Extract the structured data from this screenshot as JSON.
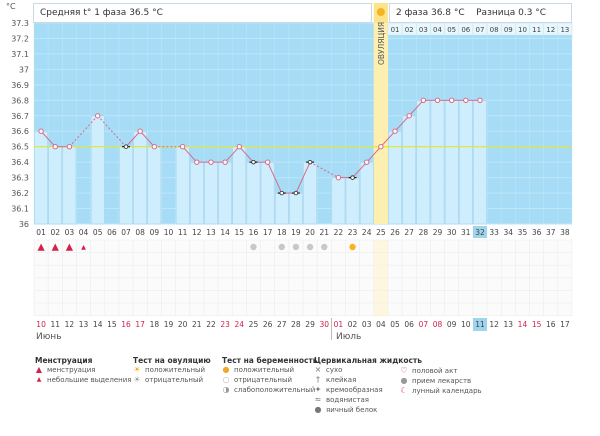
{
  "header": {
    "phase1_label": "Средняя t° 1 фаза",
    "phase1_value": "36.5 °C",
    "phase2_label": "2 фаза",
    "phase2_value": "36.8 °C",
    "diff_label": "Разница",
    "diff_value": "0.3 °C",
    "ovulation_label": "ОВУЛЯЦИЯ"
  },
  "chart_data": {
    "type": "line",
    "ylabel": "°C",
    "yticks": [
      "37.3",
      "37.2",
      "37.1",
      "37",
      "36.9",
      "36.8",
      "36.7",
      "36.6",
      "36.5",
      "36.4",
      "36.3",
      "36.2",
      "36.1",
      "36"
    ],
    "ylim": [
      36,
      37.3
    ],
    "cycle_days": [
      "01",
      "02",
      "03",
      "04",
      "05",
      "06",
      "07",
      "08",
      "09",
      "10",
      "11",
      "12",
      "13",
      "14",
      "15",
      "16",
      "17",
      "18",
      "19",
      "20",
      "21",
      "22",
      "23",
      "24",
      "25",
      "26",
      "27",
      "28",
      "29",
      "30",
      "31",
      "32",
      "33",
      "34",
      "35",
      "36",
      "37",
      "38"
    ],
    "phase2_days": [
      "01",
      "02",
      "03",
      "04",
      "05",
      "06",
      "07",
      "08",
      "09",
      "10",
      "11",
      "12",
      "13"
    ],
    "calendar_dates": [
      "10",
      "11",
      "12",
      "13",
      "14",
      "15",
      "16",
      "17",
      "18",
      "19",
      "20",
      "21",
      "22",
      "23",
      "24",
      "25",
      "26",
      "27",
      "28",
      "29",
      "30",
      "01",
      "02",
      "03",
      "04",
      "05",
      "06",
      "07",
      "08",
      "09",
      "10",
      "11",
      "12",
      "13",
      "14",
      "15",
      "16",
      "17"
    ],
    "red_dates_index": [
      0,
      6,
      7,
      13,
      14,
      20,
      21,
      27,
      28,
      34,
      35
    ],
    "highlight_index": 31,
    "months": [
      "Июнь",
      "Июль"
    ],
    "baseline": 36.5,
    "ovulation_index": 24,
    "temperatures": [
      36.6,
      36.5,
      36.5,
      null,
      36.7,
      null,
      36.5,
      36.6,
      36.5,
      null,
      36.5,
      36.4,
      36.4,
      36.4,
      36.5,
      36.4,
      36.4,
      36.2,
      36.2,
      36.4,
      null,
      36.3,
      36.3,
      36.4,
      36.5,
      36.6,
      36.7,
      36.8,
      36.8,
      36.8,
      36.8,
      36.8,
      null,
      null,
      null,
      null,
      null,
      null
    ],
    "point_types": [
      "pink",
      "pink",
      "pink",
      null,
      "pink",
      null,
      "black",
      "pink",
      "pink",
      null,
      "pink",
      "pink",
      "pink",
      "pink",
      "pink",
      "black",
      "pink",
      "black",
      "black",
      "black",
      null,
      "pink",
      "black",
      "pink",
      "pink",
      "pink",
      "pink",
      "pink",
      "pink",
      "pink",
      "pink",
      "pink",
      null,
      null,
      null,
      null,
      null,
      null
    ],
    "filled_until": 31,
    "menstruation": [
      0,
      1,
      2,
      3
    ],
    "ovulation_tests": [
      15,
      17,
      18,
      19,
      20,
      22
    ]
  },
  "legend": {
    "menstruation": {
      "title": "Менструация",
      "items": [
        "менструация",
        "небольшие выделения"
      ]
    },
    "ovulation_test": {
      "title": "Тест на овуляцию",
      "items": [
        "положительный",
        "отрицательный"
      ]
    },
    "pregnancy_test": {
      "title": "Тест на беременность",
      "items": [
        "положительный",
        "отрицательный",
        "слабоположительный"
      ]
    },
    "cervical": {
      "title": "Цервикальная жидкость",
      "items": [
        "сухо",
        "клейкая",
        "кремообразная",
        "водянистая",
        "яичный белок"
      ]
    },
    "other": {
      "items": [
        "половой акт",
        "прием лекарств",
        "лунный календарь"
      ]
    }
  },
  "colors": {
    "sky": "#a6dcf6",
    "bar": "#cfeefd",
    "bar_border": "#9ccbe6",
    "line": "#d76a8a",
    "ovul": "#fbe48a",
    "baseline": "#e3e62a",
    "red": "#d3204c"
  }
}
